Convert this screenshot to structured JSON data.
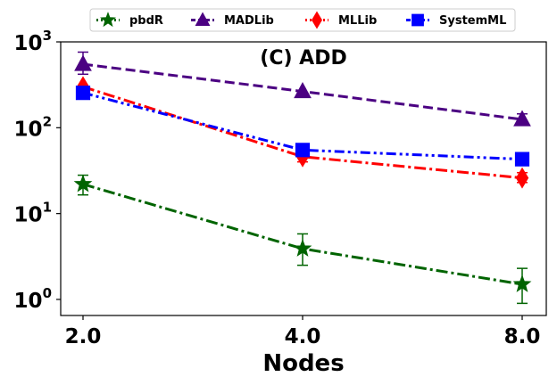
{
  "chart_data": {
    "type": "line",
    "title": "(C) ADD",
    "xlabel": "Nodes",
    "ylabel": "",
    "x": [
      2.0,
      4.0,
      8.0
    ],
    "x_tick_labels": [
      "2.0",
      "4.0",
      "8.0"
    ],
    "y_scale": "log",
    "ylim": [
      0.65,
      1000
    ],
    "y_ticks": [
      {
        "base": "10",
        "exp": "0",
        "value": 1
      },
      {
        "base": "10",
        "exp": "1",
        "value": 10
      },
      {
        "base": "10",
        "exp": "2",
        "value": 100
      },
      {
        "base": "10",
        "exp": "3",
        "value": 1000
      }
    ],
    "grid": false,
    "legend_position": "top-outside",
    "series": [
      {
        "name": "pbdR",
        "color": "#006400",
        "marker": "star",
        "line_style": "dashdot",
        "values": [
          22,
          3.9,
          1.5
        ],
        "error_low": [
          16.5,
          2.5,
          0.9
        ],
        "error_high": [
          28,
          5.8,
          2.3
        ]
      },
      {
        "name": "MADLib",
        "color": "#4B0082",
        "marker": "triangle",
        "line_style": "dashed",
        "values": [
          550,
          265,
          125
        ],
        "error_low": [
          420,
          265,
          108
        ],
        "error_high": [
          760,
          265,
          145
        ]
      },
      {
        "name": "MLLib",
        "color": "#FF0000",
        "marker": "diamond",
        "line_style": "dashdot",
        "values": [
          300,
          46,
          26
        ],
        "error_low": [
          300,
          40,
          23
        ],
        "error_high": [
          300,
          52,
          30
        ]
      },
      {
        "name": "SystemML",
        "color": "#0000FF",
        "marker": "square",
        "line_style": "dashdotdot",
        "values": [
          255,
          55,
          43
        ],
        "error_low": [
          255,
          55,
          43
        ],
        "error_high": [
          255,
          55,
          43
        ]
      }
    ]
  }
}
